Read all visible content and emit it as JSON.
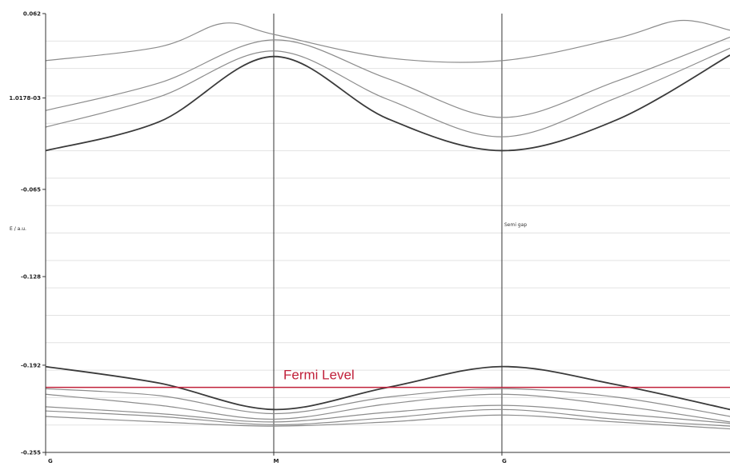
{
  "chart_data": {
    "type": "line",
    "title": "",
    "xlabel": "",
    "ylabel": "E / a.u.",
    "ytick_labels": [
      "0.062",
      "1.0178-03",
      "-0.065",
      "-0.128",
      "-0.192",
      "-0.255"
    ],
    "ytick_values": [
      0.062,
      0.00102,
      -0.065,
      -0.128,
      -0.192,
      -0.255
    ],
    "ylim": [
      -0.255,
      0.062
    ],
    "xlim": [
      0,
      3
    ],
    "x_points": [
      "G",
      "M",
      "G"
    ],
    "x_point_positions": [
      0,
      1,
      2
    ],
    "grid": true,
    "annotation": "Semi gap",
    "fermi": {
      "label": "Fermi Level",
      "value": -0.208,
      "color": "#c0203a"
    },
    "colors": {
      "dark": "#3a3a3a",
      "light": "#8c8c8c",
      "axis": "#333333",
      "grid": "#e2e2e2"
    },
    "series": [
      {
        "color": "light",
        "width": 1.2,
        "values": [
          [
            0.0,
            0.028
          ],
          [
            0.5,
            0.038
          ],
          [
            0.78,
            0.055
          ],
          [
            1.0,
            0.047
          ],
          [
            1.5,
            0.03
          ],
          [
            2.0,
            0.028
          ],
          [
            2.5,
            0.044
          ],
          [
            2.78,
            0.057
          ],
          [
            3.0,
            0.05
          ]
        ]
      },
      {
        "color": "light",
        "width": 1.2,
        "values": [
          [
            0.0,
            -0.008
          ],
          [
            0.5,
            0.012
          ],
          [
            1.0,
            0.043
          ],
          [
            1.5,
            0.015
          ],
          [
            2.0,
            -0.013
          ],
          [
            2.5,
            0.013
          ],
          [
            3.0,
            0.045
          ]
        ]
      },
      {
        "color": "light",
        "width": 1.2,
        "values": [
          [
            0.0,
            -0.02
          ],
          [
            0.5,
            0.002
          ],
          [
            1.0,
            0.035
          ],
          [
            1.5,
            0.0
          ],
          [
            2.0,
            -0.027
          ],
          [
            2.5,
            0.001
          ],
          [
            3.0,
            0.037
          ]
        ]
      },
      {
        "color": "dark",
        "width": 1.8,
        "values": [
          [
            0.0,
            -0.037
          ],
          [
            0.5,
            -0.016
          ],
          [
            1.0,
            0.031
          ],
          [
            1.5,
            -0.014
          ],
          [
            2.0,
            -0.037
          ],
          [
            2.5,
            -0.015
          ],
          [
            3.0,
            0.032
          ]
        ]
      },
      {
        "color": "dark",
        "width": 1.8,
        "values": [
          [
            0.0,
            -0.193
          ],
          [
            0.5,
            -0.205
          ],
          [
            1.0,
            -0.224
          ],
          [
            1.5,
            -0.208
          ],
          [
            2.0,
            -0.193
          ],
          [
            2.5,
            -0.206
          ],
          [
            3.0,
            -0.224
          ]
        ]
      },
      {
        "color": "light",
        "width": 1.2,
        "values": [
          [
            0.0,
            -0.209
          ],
          [
            0.5,
            -0.214
          ],
          [
            1.0,
            -0.227
          ],
          [
            1.5,
            -0.215
          ],
          [
            2.0,
            -0.209
          ],
          [
            2.5,
            -0.215
          ],
          [
            3.0,
            -0.229
          ]
        ]
      },
      {
        "color": "light",
        "width": 1.2,
        "values": [
          [
            0.0,
            -0.213
          ],
          [
            0.5,
            -0.221
          ],
          [
            1.0,
            -0.231
          ],
          [
            1.5,
            -0.22
          ],
          [
            2.0,
            -0.213
          ],
          [
            2.5,
            -0.221
          ],
          [
            3.0,
            -0.233
          ]
        ]
      },
      {
        "color": "light",
        "width": 1.2,
        "values": [
          [
            0.0,
            -0.222
          ],
          [
            0.5,
            -0.227
          ],
          [
            1.0,
            -0.233
          ],
          [
            1.5,
            -0.226
          ],
          [
            2.0,
            -0.221
          ],
          [
            2.5,
            -0.227
          ],
          [
            3.0,
            -0.234
          ]
        ]
      },
      {
        "color": "light",
        "width": 1.2,
        "values": [
          [
            0.0,
            -0.225
          ],
          [
            0.5,
            -0.229
          ],
          [
            1.0,
            -0.235
          ],
          [
            1.5,
            -0.23
          ],
          [
            2.0,
            -0.224
          ],
          [
            2.5,
            -0.231
          ],
          [
            3.0,
            -0.236
          ]
        ]
      },
      {
        "color": "light",
        "width": 1.2,
        "values": [
          [
            0.0,
            -0.229
          ],
          [
            0.5,
            -0.233
          ],
          [
            1.0,
            -0.236
          ],
          [
            1.5,
            -0.233
          ],
          [
            2.0,
            -0.228
          ],
          [
            2.5,
            -0.233
          ],
          [
            3.0,
            -0.238
          ]
        ]
      }
    ]
  }
}
